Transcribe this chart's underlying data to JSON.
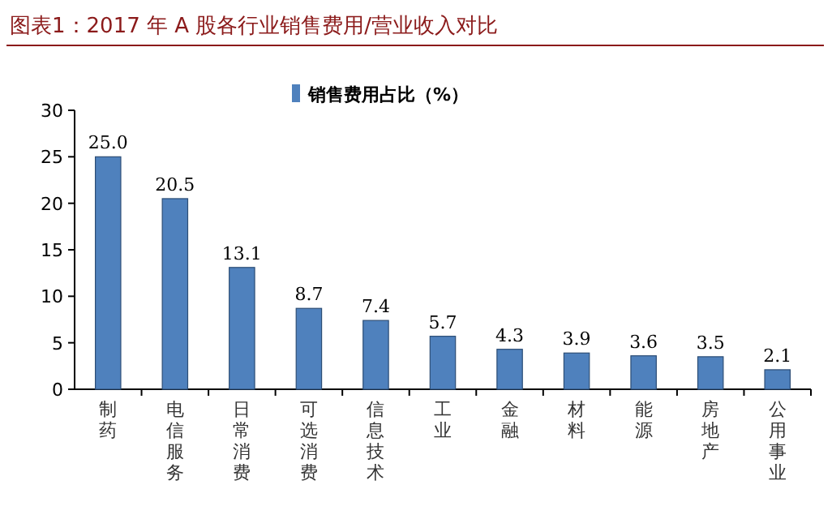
{
  "chart_data": {
    "type": "bar",
    "title": "图表1：2017 年 A 股各行业销售费用/营业收入对比",
    "categories": [
      "制药",
      "电信服务",
      "日常消费",
      "可选消费",
      "信息技术",
      "工业",
      "金融",
      "材料",
      "能源",
      "房地产",
      "公用事业"
    ],
    "series": [
      {
        "name": "销售费用占比（%）",
        "color": "#4f81bd",
        "values": [
          25.0,
          20.5,
          13.1,
          8.7,
          7.4,
          5.7,
          4.3,
          3.9,
          3.6,
          3.5,
          2.1
        ]
      }
    ],
    "value_labels": [
      "25.0",
      "20.5",
      "13.1",
      "8.7",
      "7.4",
      "5.7",
      "4.3",
      "3.9",
      "3.6",
      "3.5",
      "2.1"
    ],
    "ylim": [
      0,
      30
    ],
    "yticks": [
      0,
      5,
      10,
      15,
      20,
      25,
      30
    ],
    "grid": false,
    "legend": "top"
  }
}
